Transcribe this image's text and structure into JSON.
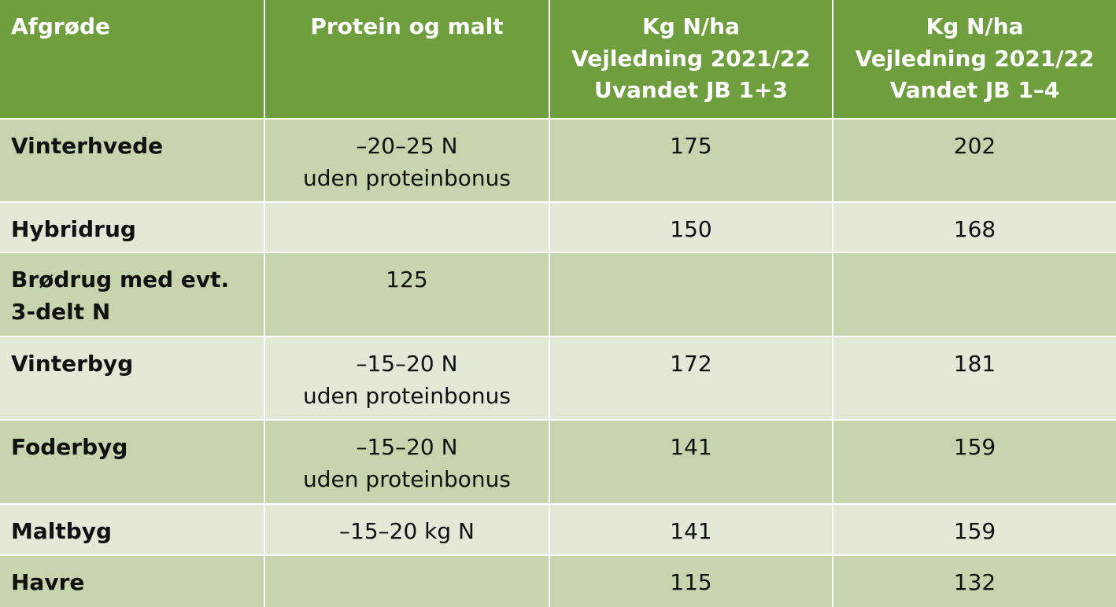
{
  "table": {
    "header": [
      "Afgrøde",
      "Protein og malt",
      "Kg N/ha\nVejledning 2021/22\nUvandet JB 1+3",
      "Kg N/ha\nVejledning 2021/22\nVandet JB 1–4"
    ],
    "rows": [
      [
        "Vinterhvede",
        "–20–25 N\nuden proteinbonus",
        175,
        202
      ],
      [
        "Hybridrug",
        null,
        150,
        168
      ],
      [
        "Brødrug med evt.\n3-delt N",
        125,
        null,
        null
      ],
      [
        "Vinterbyg",
        "–15–20 N\nuden proteinbonus",
        172,
        181
      ],
      [
        "Foderbyg",
        "–15–20 N\nuden proteinbonus",
        141,
        159
      ],
      [
        "Maltbyg",
        "–15–20 kg N",
        141,
        159
      ],
      [
        "Havre",
        null,
        115,
        132
      ]
    ]
  }
}
